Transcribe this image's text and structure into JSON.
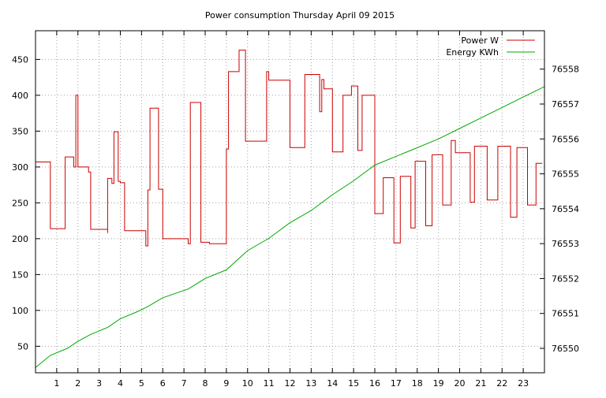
{
  "chart_data": {
    "type": "line",
    "title": "Power consumption Thursday April 09 2015",
    "x_axis": {
      "range": [
        0,
        24
      ],
      "ticks": [
        1,
        2,
        3,
        4,
        5,
        6,
        7,
        8,
        9,
        10,
        11,
        12,
        13,
        14,
        15,
        16,
        17,
        18,
        19,
        20,
        21,
        22,
        23
      ],
      "grid": true
    },
    "y_axis_left": {
      "range": [
        13,
        490
      ],
      "ticks": [
        50,
        100,
        150,
        200,
        250,
        300,
        350,
        400,
        450
      ]
    },
    "y_axis_right": {
      "range": [
        76549.3,
        76559.1
      ],
      "ticks": [
        76550,
        76551,
        76552,
        76553,
        76554,
        76555,
        76556,
        76557,
        76558
      ]
    },
    "legend_position": "top-right",
    "series": [
      {
        "name": "Power W",
        "axis": "left",
        "color": "#cc0000",
        "step": true,
        "points": [
          [
            0.0,
            307
          ],
          [
            0.7,
            307
          ],
          [
            0.7,
            214
          ],
          [
            1.4,
            214
          ],
          [
            1.4,
            314
          ],
          [
            1.8,
            314
          ],
          [
            1.8,
            300
          ],
          [
            1.9,
            300
          ],
          [
            1.9,
            400
          ],
          [
            2.0,
            400
          ],
          [
            2.0,
            300
          ],
          [
            2.5,
            300
          ],
          [
            2.5,
            293
          ],
          [
            2.6,
            293
          ],
          [
            2.6,
            213
          ],
          [
            3.4,
            213
          ],
          [
            3.4,
            208
          ],
          [
            3.4,
            284
          ],
          [
            3.6,
            284
          ],
          [
            3.6,
            277
          ],
          [
            3.7,
            277
          ],
          [
            3.7,
            349
          ],
          [
            3.9,
            349
          ],
          [
            3.9,
            280
          ],
          [
            4.0,
            280
          ],
          [
            4.0,
            278
          ],
          [
            4.2,
            278
          ],
          [
            4.2,
            211
          ],
          [
            5.2,
            211
          ],
          [
            5.2,
            190
          ],
          [
            5.3,
            190
          ],
          [
            5.3,
            268
          ],
          [
            5.4,
            268
          ],
          [
            5.4,
            382
          ],
          [
            5.8,
            382
          ],
          [
            5.8,
            269
          ],
          [
            6.0,
            269
          ],
          [
            6.0,
            200
          ],
          [
            7.2,
            200
          ],
          [
            7.2,
            193
          ],
          [
            7.3,
            193
          ],
          [
            7.3,
            390
          ],
          [
            7.8,
            390
          ],
          [
            7.8,
            195
          ],
          [
            8.2,
            195
          ],
          [
            8.2,
            193
          ],
          [
            9.0,
            193
          ],
          [
            9.0,
            325
          ],
          [
            9.1,
            325
          ],
          [
            9.1,
            433
          ],
          [
            9.6,
            433
          ],
          [
            9.6,
            463
          ],
          [
            9.9,
            463
          ],
          [
            9.9,
            336
          ],
          [
            10.9,
            336
          ],
          [
            10.9,
            433
          ],
          [
            11.0,
            433
          ],
          [
            11.0,
            421
          ],
          [
            12.0,
            421
          ],
          [
            12.0,
            327
          ],
          [
            12.7,
            327
          ],
          [
            12.7,
            429
          ],
          [
            13.4,
            429
          ],
          [
            13.4,
            377
          ],
          [
            13.5,
            377
          ],
          [
            13.5,
            422
          ],
          [
            13.6,
            422
          ],
          [
            13.6,
            409
          ],
          [
            14.0,
            409
          ],
          [
            14.0,
            321
          ],
          [
            14.5,
            321
          ],
          [
            14.5,
            400
          ],
          [
            14.9,
            400
          ],
          [
            14.9,
            413
          ],
          [
            15.2,
            413
          ],
          [
            15.2,
            323
          ],
          [
            15.4,
            323
          ],
          [
            15.4,
            400
          ],
          [
            16.0,
            400
          ],
          [
            16.0,
            235
          ],
          [
            16.4,
            235
          ],
          [
            16.4,
            285
          ],
          [
            16.9,
            285
          ],
          [
            16.9,
            194
          ],
          [
            17.2,
            194
          ],
          [
            17.2,
            287
          ],
          [
            17.7,
            287
          ],
          [
            17.7,
            215
          ],
          [
            17.9,
            215
          ],
          [
            17.9,
            308
          ],
          [
            18.4,
            308
          ],
          [
            18.4,
            218
          ],
          [
            18.7,
            218
          ],
          [
            18.7,
            317
          ],
          [
            19.2,
            317
          ],
          [
            19.2,
            247
          ],
          [
            19.6,
            247
          ],
          [
            19.6,
            337
          ],
          [
            19.8,
            337
          ],
          [
            19.8,
            320
          ],
          [
            20.5,
            320
          ],
          [
            20.5,
            251
          ],
          [
            20.7,
            251
          ],
          [
            20.7,
            329
          ],
          [
            21.3,
            329
          ],
          [
            21.3,
            254
          ],
          [
            21.8,
            254
          ],
          [
            21.8,
            329
          ],
          [
            22.4,
            329
          ],
          [
            22.4,
            230
          ],
          [
            22.7,
            230
          ],
          [
            22.7,
            327
          ],
          [
            23.2,
            327
          ],
          [
            23.2,
            247
          ],
          [
            23.6,
            247
          ],
          [
            23.6,
            305
          ],
          [
            23.9,
            305
          ]
        ]
      },
      {
        "name": "Energy KWh",
        "axis": "right",
        "color": "#00aa00",
        "step": false,
        "points": [
          [
            0.0,
            76549.45
          ],
          [
            0.7,
            76549.8
          ],
          [
            1.5,
            76550.0
          ],
          [
            2.0,
            76550.2
          ],
          [
            2.6,
            76550.4
          ],
          [
            3.4,
            76550.6
          ],
          [
            4.0,
            76550.85
          ],
          [
            4.8,
            76551.05
          ],
          [
            5.3,
            76551.2
          ],
          [
            6.0,
            76551.45
          ],
          [
            7.2,
            76551.7
          ],
          [
            8.0,
            76552.0
          ],
          [
            9.0,
            76552.25
          ],
          [
            10.0,
            76552.8
          ],
          [
            11.0,
            76553.15
          ],
          [
            12.0,
            76553.6
          ],
          [
            13.0,
            76553.95
          ],
          [
            14.0,
            76554.4
          ],
          [
            15.0,
            76554.8
          ],
          [
            16.0,
            76555.25
          ],
          [
            17.0,
            76555.5
          ],
          [
            18.0,
            76555.75
          ],
          [
            19.0,
            76556.0
          ],
          [
            20.0,
            76556.3
          ],
          [
            21.0,
            76556.6
          ],
          [
            22.0,
            76556.9
          ],
          [
            23.0,
            76557.2
          ],
          [
            24.0,
            76557.5
          ]
        ]
      }
    ]
  }
}
